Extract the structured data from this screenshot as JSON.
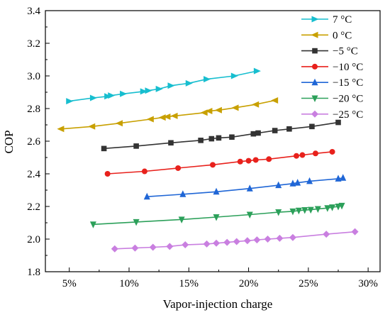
{
  "chart_data": {
    "type": "line",
    "xlabel": "Vapor-injection charge",
    "ylabel": "COP",
    "xlim": [
      0.03,
      0.31
    ],
    "ylim": [
      1.8,
      3.4
    ],
    "xticks": [
      0.05,
      0.1,
      0.15,
      0.2,
      0.25,
      0.3
    ],
    "xtick_labels": [
      "5%",
      "10%",
      "15%",
      "20%",
      "25%",
      "30%"
    ],
    "yticks": [
      1.8,
      2.0,
      2.2,
      2.4,
      2.6,
      2.8,
      3.0,
      3.2,
      3.4
    ],
    "ytick_labels": [
      "1.8",
      "2.0",
      "2.2",
      "2.4",
      "2.6",
      "2.8",
      "3.0",
      "3.2",
      "3.4"
    ],
    "grid": false,
    "legend_position": "top-right",
    "series": [
      {
        "name": "7 °C",
        "color": "#17becf",
        "marker": "triangle-right",
        "x": [
          0.05,
          0.07,
          0.082,
          0.085,
          0.095,
          0.112,
          0.116,
          0.125,
          0.135,
          0.15,
          0.165,
          0.188,
          0.207
        ],
        "y": [
          2.845,
          2.865,
          2.875,
          2.88,
          2.89,
          2.905,
          2.91,
          2.92,
          2.94,
          2.955,
          2.98,
          3.0,
          3.03
        ]
      },
      {
        "name": "0 °C",
        "color": "#c8a000",
        "marker": "triangle-left",
        "x": [
          0.043,
          0.069,
          0.092,
          0.118,
          0.128,
          0.132,
          0.138,
          0.163,
          0.167,
          0.175,
          0.189,
          0.206,
          0.222
        ],
        "y": [
          2.675,
          2.69,
          2.71,
          2.735,
          2.745,
          2.75,
          2.755,
          2.775,
          2.785,
          2.79,
          2.805,
          2.825,
          2.85
        ]
      },
      {
        "name": "−5 °C",
        "color": "#333333",
        "marker": "square",
        "x": [
          0.079,
          0.106,
          0.135,
          0.16,
          0.169,
          0.175,
          0.186,
          0.204,
          0.208,
          0.222,
          0.234,
          0.253,
          0.275
        ],
        "y": [
          2.555,
          2.57,
          2.59,
          2.605,
          2.615,
          2.62,
          2.625,
          2.645,
          2.65,
          2.665,
          2.675,
          2.69,
          2.715
        ]
      },
      {
        "name": "−10 °C",
        "color": "#e8211c",
        "marker": "circle",
        "x": [
          0.082,
          0.113,
          0.141,
          0.17,
          0.193,
          0.2,
          0.206,
          0.217,
          0.24,
          0.245,
          0.256,
          0.27
        ],
        "y": [
          2.4,
          2.415,
          2.435,
          2.455,
          2.475,
          2.48,
          2.485,
          2.49,
          2.51,
          2.515,
          2.525,
          2.535
        ]
      },
      {
        "name": "−15 °C",
        "color": "#1f66d6",
        "marker": "triangle-up",
        "x": [
          0.115,
          0.145,
          0.173,
          0.201,
          0.225,
          0.237,
          0.241,
          0.251,
          0.275,
          0.279
        ],
        "y": [
          2.26,
          2.275,
          2.29,
          2.31,
          2.33,
          2.34,
          2.345,
          2.355,
          2.37,
          2.375
        ]
      },
      {
        "name": "−20 °C",
        "color": "#2ca05a",
        "marker": "triangle-down",
        "x": [
          0.07,
          0.106,
          0.144,
          0.173,
          0.201,
          0.225,
          0.237,
          0.242,
          0.247,
          0.252,
          0.258,
          0.266,
          0.27,
          0.275,
          0.278
        ],
        "y": [
          2.09,
          2.105,
          2.12,
          2.135,
          2.15,
          2.165,
          2.17,
          2.175,
          2.178,
          2.18,
          2.185,
          2.19,
          2.195,
          2.2,
          2.205
        ]
      },
      {
        "name": "−25 °C",
        "color": "#c97fe0",
        "marker": "diamond",
        "x": [
          0.088,
          0.105,
          0.12,
          0.134,
          0.147,
          0.165,
          0.173,
          0.182,
          0.19,
          0.199,
          0.207,
          0.216,
          0.226,
          0.237,
          0.265,
          0.289
        ],
        "y": [
          1.94,
          1.945,
          1.95,
          1.955,
          1.965,
          1.97,
          1.975,
          1.98,
          1.985,
          1.99,
          1.995,
          2.0,
          2.005,
          2.01,
          2.03,
          2.045
        ]
      }
    ]
  }
}
